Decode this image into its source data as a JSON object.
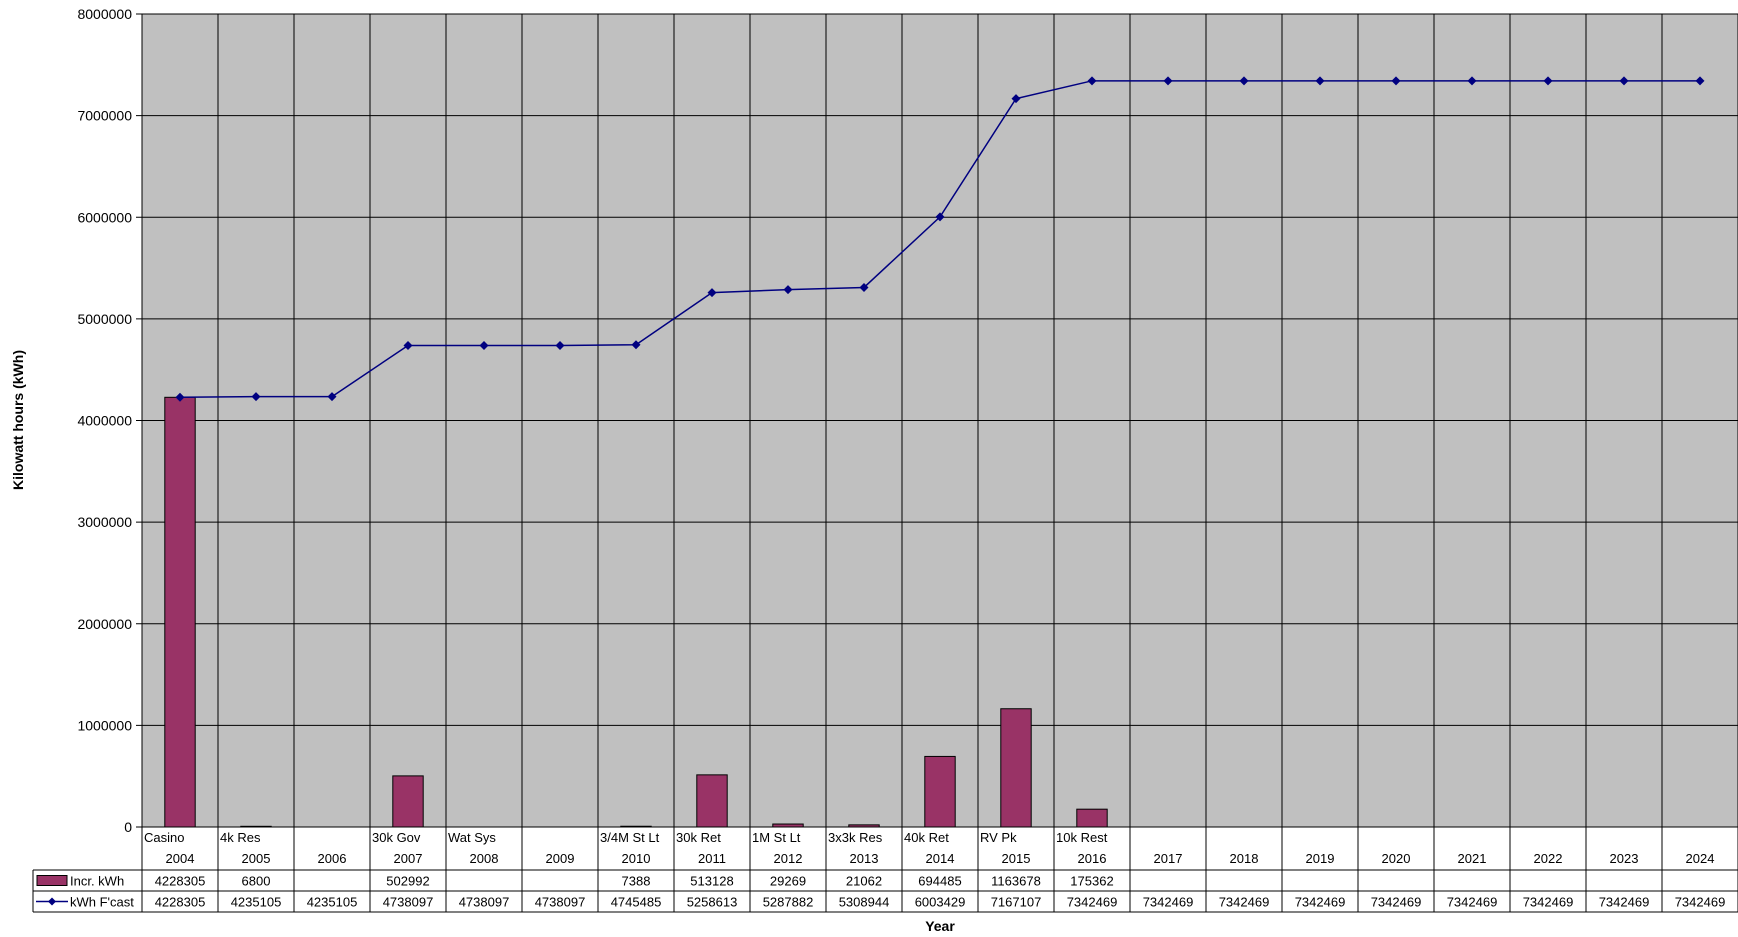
{
  "chart_data": {
    "type": "bar",
    "title": "",
    "xlabel": "Year",
    "ylabel": "Kilowatt hours (kWh)",
    "ylim": [
      0,
      8000000
    ],
    "yticks": [
      "0",
      "1000000",
      "2000000",
      "3000000",
      "4000000",
      "5000000",
      "6000000",
      "7000000",
      "8000000"
    ],
    "grid": true,
    "legend": "data-table",
    "colors": {
      "plot_bg": "#c0c0c0",
      "bar": "#993366",
      "line": "#000080",
      "grid": "#000000"
    },
    "categories": [
      {
        "annotation": "Casino",
        "year": "2004"
      },
      {
        "annotation": "4k Res",
        "year": "2005"
      },
      {
        "annotation": "",
        "year": "2006"
      },
      {
        "annotation": "30k Gov",
        "year": "2007"
      },
      {
        "annotation": "Wat Sys",
        "year": "2008"
      },
      {
        "annotation": "",
        "year": "2009"
      },
      {
        "annotation": "3/4M St Lt",
        "year": "2010"
      },
      {
        "annotation": "30k Ret",
        "year": "2011"
      },
      {
        "annotation": "1M St Lt",
        "year": "2012"
      },
      {
        "annotation": "3x3k Res",
        "year": "2013"
      },
      {
        "annotation": "40k Ret",
        "year": "2014"
      },
      {
        "annotation": "RV Pk",
        "year": "2015"
      },
      {
        "annotation": "10k Rest",
        "year": "2016"
      },
      {
        "annotation": "",
        "year": "2017"
      },
      {
        "annotation": "",
        "year": "2018"
      },
      {
        "annotation": "",
        "year": "2019"
      },
      {
        "annotation": "",
        "year": "2020"
      },
      {
        "annotation": "",
        "year": "2021"
      },
      {
        "annotation": "",
        "year": "2022"
      },
      {
        "annotation": "",
        "year": "2023"
      },
      {
        "annotation": "",
        "year": "2024"
      }
    ],
    "series": [
      {
        "name": "Incr. kWh",
        "type": "bar",
        "values": [
          4228305,
          6800,
          null,
          502992,
          null,
          null,
          7388,
          513128,
          29269,
          21062,
          694485,
          1163678,
          175362,
          null,
          null,
          null,
          null,
          null,
          null,
          null,
          null
        ]
      },
      {
        "name": "kWh F'cast",
        "type": "line",
        "values": [
          4228305,
          4235105,
          4235105,
          4738097,
          4738097,
          4738097,
          4745485,
          5258613,
          5287882,
          5308944,
          6003429,
          7167107,
          7342469,
          7342469,
          7342469,
          7342469,
          7342469,
          7342469,
          7342469,
          7342469,
          7342469
        ]
      }
    ]
  }
}
